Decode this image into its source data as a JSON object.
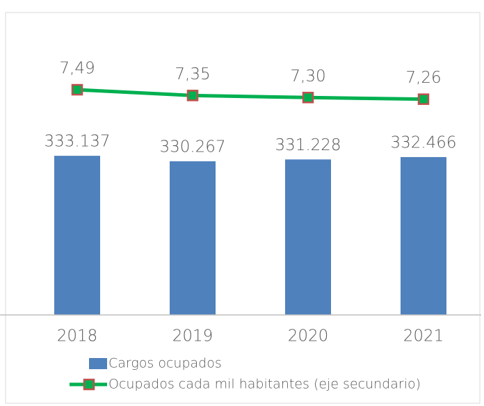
{
  "chart_data": {
    "type": "bar_line",
    "categories": [
      "2018",
      "2019",
      "2020",
      "2021"
    ],
    "series": [
      {
        "name": "Cargos ocupados",
        "type": "bar",
        "color": "#4f81bd",
        "values": [
          333137,
          330267,
          331228,
          332466
        ],
        "value_labels": [
          "333.137",
          "330.267",
          "331.228",
          "332.466"
        ]
      },
      {
        "name": "Ocupados cada mil habitantes (eje secundario)",
        "type": "line",
        "axis": "y2",
        "color": "#00b050",
        "marker_color": "#c0504d",
        "values": [
          7.49,
          7.35,
          7.3,
          7.26
        ],
        "value_labels": [
          "7,49",
          "7,35",
          "7,30",
          "7,26"
        ]
      }
    ],
    "ylim": [
      250000,
      400000
    ],
    "y2lim": [
      2,
      9
    ],
    "legend": "bottom-left"
  }
}
